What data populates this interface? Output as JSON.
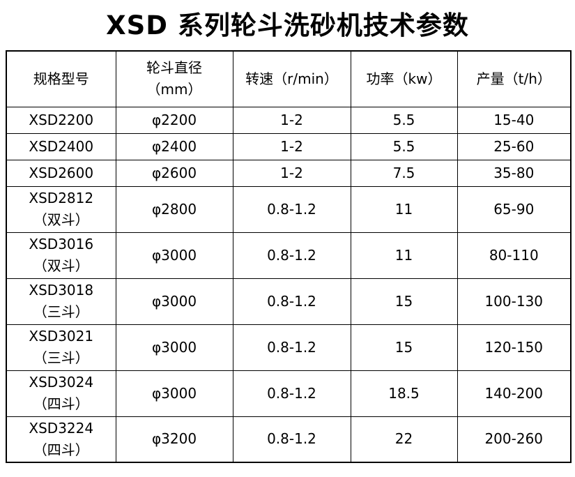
{
  "page_title": "XSD 系列轮斗洗砂机技术参数",
  "table": {
    "headers": [
      "规格型号",
      "轮斗直径\n（mm）",
      "转速（r/min）",
      "功率（kw）",
      "产量（t/h）"
    ],
    "rows": [
      [
        "XSD2200",
        "φ2200",
        "1-2",
        "5.5",
        "15-40"
      ],
      [
        "XSD2400",
        "φ2400",
        "1-2",
        "5.5",
        "25-60"
      ],
      [
        "XSD2600",
        "φ2600",
        "1-2",
        "7.5",
        "35-80"
      ],
      [
        "XSD2812\n（双斗）",
        "φ2800",
        "0.8-1.2",
        "11",
        "65-90"
      ],
      [
        "XSD3016\n（双斗）",
        "φ3000",
        "0.8-1.2",
        "11",
        "80-110"
      ],
      [
        "XSD3018\n（三斗）",
        "φ3000",
        "0.8-1.2",
        "15",
        "100-130"
      ],
      [
        "XSD3021\n（三斗）",
        "φ3000",
        "0.8-1.2",
        "15",
        "120-150"
      ],
      [
        "XSD3024\n（四斗）",
        "φ3000",
        "0.8-1.2",
        "18.5",
        "140-200"
      ],
      [
        "XSD3224\n（四斗）",
        "φ3200",
        "0.8-1.2",
        "22",
        "200-260"
      ]
    ]
  },
  "colors": {
    "text": "#000000",
    "border": "#000000",
    "background": "#ffffff"
  }
}
